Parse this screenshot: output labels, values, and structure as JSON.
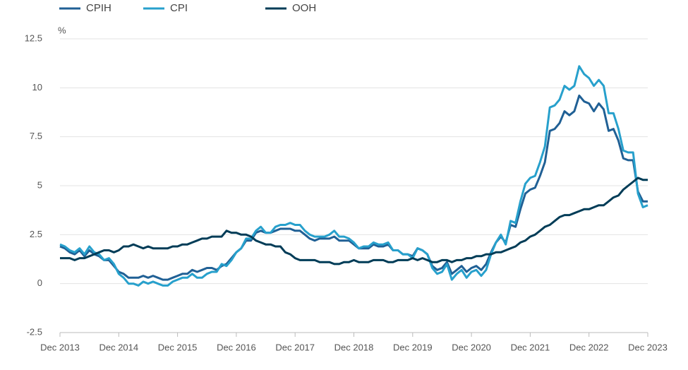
{
  "chart_data": {
    "type": "line",
    "y_label": "%",
    "categories": [
      "Dec 2013",
      null,
      null,
      null,
      null,
      null,
      null,
      null,
      null,
      null,
      null,
      null,
      "Dec 2014",
      null,
      null,
      null,
      null,
      null,
      null,
      null,
      null,
      null,
      null,
      null,
      "Dec 2015",
      null,
      null,
      null,
      null,
      null,
      null,
      null,
      null,
      null,
      null,
      null,
      "Dec 2016",
      null,
      null,
      null,
      null,
      null,
      null,
      null,
      null,
      null,
      null,
      null,
      "Dec 2017",
      null,
      null,
      null,
      null,
      null,
      null,
      null,
      null,
      null,
      null,
      null,
      "Dec 2018",
      null,
      null,
      null,
      null,
      null,
      null,
      null,
      null,
      null,
      null,
      null,
      "Dec 2019",
      null,
      null,
      null,
      null,
      null,
      null,
      null,
      null,
      null,
      null,
      null,
      "Dec 2020",
      null,
      null,
      null,
      null,
      null,
      null,
      null,
      null,
      null,
      null,
      null,
      "Dec 2021",
      null,
      null,
      null,
      null,
      null,
      null,
      null,
      null,
      null,
      null,
      null,
      "Dec 2022",
      null,
      null,
      null,
      null,
      null,
      null,
      null,
      null,
      null,
      null,
      null,
      "Dec 2023"
    ],
    "series": [
      {
        "name": "CPIH",
        "color": "#206095",
        "values": [
          1.9,
          1.8,
          1.6,
          1.5,
          1.7,
          1.4,
          1.7,
          1.5,
          1.4,
          1.2,
          1.2,
          0.9,
          0.6,
          0.5,
          0.3,
          0.3,
          0.3,
          0.4,
          0.3,
          0.4,
          0.3,
          0.2,
          0.2,
          0.3,
          0.4,
          0.5,
          0.5,
          0.7,
          0.6,
          0.7,
          0.8,
          0.8,
          0.7,
          0.9,
          1.0,
          1.3,
          1.6,
          1.8,
          2.2,
          2.2,
          2.6,
          2.7,
          2.6,
          2.6,
          2.7,
          2.8,
          2.8,
          2.8,
          2.7,
          2.7,
          2.5,
          2.3,
          2.2,
          2.3,
          2.3,
          2.3,
          2.4,
          2.2,
          2.2,
          2.2,
          2.0,
          1.8,
          1.8,
          1.8,
          2.0,
          1.9,
          1.9,
          2.0,
          1.7,
          1.7,
          1.5,
          1.5,
          1.4,
          1.8,
          1.7,
          1.5,
          0.9,
          0.7,
          0.8,
          1.1,
          0.5,
          0.7,
          0.9,
          0.6,
          0.8,
          0.9,
          0.7,
          1.0,
          1.6,
          2.1,
          2.4,
          2.1,
          3.0,
          2.9,
          3.8,
          4.6,
          4.8,
          4.9,
          5.5,
          6.2,
          7.8,
          7.9,
          8.2,
          8.8,
          8.6,
          8.8,
          9.6,
          9.3,
          9.2,
          8.8,
          9.2,
          8.9,
          7.8,
          7.9,
          7.3,
          6.4,
          6.3,
          6.3,
          4.7,
          4.2,
          4.2
        ]
      },
      {
        "name": "CPI",
        "color": "#27a0cc",
        "values": [
          2.0,
          1.9,
          1.7,
          1.6,
          1.8,
          1.5,
          1.9,
          1.6,
          1.5,
          1.2,
          1.3,
          1.0,
          0.5,
          0.3,
          0.0,
          0.0,
          -0.1,
          0.1,
          0.0,
          0.1,
          0.0,
          -0.1,
          -0.1,
          0.1,
          0.2,
          0.3,
          0.3,
          0.5,
          0.3,
          0.3,
          0.5,
          0.6,
          0.6,
          1.0,
          0.9,
          1.2,
          1.6,
          1.8,
          2.3,
          2.3,
          2.7,
          2.9,
          2.6,
          2.6,
          2.9,
          3.0,
          3.0,
          3.1,
          3.0,
          3.0,
          2.7,
          2.5,
          2.4,
          2.4,
          2.4,
          2.5,
          2.7,
          2.4,
          2.4,
          2.3,
          2.1,
          1.8,
          1.9,
          1.9,
          2.1,
          2.0,
          2.0,
          2.1,
          1.7,
          1.7,
          1.5,
          1.5,
          1.3,
          1.8,
          1.7,
          1.5,
          0.8,
          0.5,
          0.6,
          1.0,
          0.2,
          0.5,
          0.7,
          0.3,
          0.6,
          0.7,
          0.4,
          0.7,
          1.5,
          2.1,
          2.5,
          2.0,
          3.2,
          3.1,
          4.2,
          5.1,
          5.4,
          5.5,
          6.2,
          7.0,
          9.0,
          9.1,
          9.4,
          10.1,
          9.9,
          10.1,
          11.1,
          10.7,
          10.5,
          10.1,
          10.4,
          10.1,
          8.7,
          8.7,
          7.9,
          6.8,
          6.7,
          6.7,
          4.6,
          3.9,
          4.0
        ]
      },
      {
        "name": "OOH",
        "color": "#003c57",
        "values": [
          1.3,
          1.3,
          1.3,
          1.2,
          1.3,
          1.3,
          1.4,
          1.5,
          1.6,
          1.7,
          1.7,
          1.6,
          1.7,
          1.9,
          1.9,
          2.0,
          1.9,
          1.8,
          1.9,
          1.8,
          1.8,
          1.8,
          1.8,
          1.9,
          1.9,
          2.0,
          2.0,
          2.1,
          2.2,
          2.3,
          2.3,
          2.4,
          2.4,
          2.4,
          2.7,
          2.6,
          2.6,
          2.5,
          2.5,
          2.4,
          2.2,
          2.1,
          2.0,
          2.0,
          1.9,
          1.9,
          1.6,
          1.5,
          1.3,
          1.2,
          1.2,
          1.2,
          1.2,
          1.1,
          1.1,
          1.1,
          1.0,
          1.0,
          1.1,
          1.1,
          1.2,
          1.1,
          1.1,
          1.1,
          1.2,
          1.2,
          1.2,
          1.1,
          1.1,
          1.2,
          1.2,
          1.2,
          1.3,
          1.2,
          1.3,
          1.2,
          1.1,
          1.1,
          1.2,
          1.2,
          1.1,
          1.2,
          1.2,
          1.3,
          1.3,
          1.4,
          1.4,
          1.5,
          1.5,
          1.6,
          1.6,
          1.7,
          1.8,
          1.9,
          2.1,
          2.2,
          2.4,
          2.5,
          2.7,
          2.9,
          3.0,
          3.2,
          3.4,
          3.5,
          3.5,
          3.6,
          3.7,
          3.8,
          3.8,
          3.9,
          4.0,
          4.0,
          4.2,
          4.4,
          4.5,
          4.8,
          5.0,
          5.2,
          5.4,
          5.3,
          5.3
        ]
      }
    ],
    "ylim": [
      -2.5,
      12.5
    ],
    "yticks": [
      -2.5,
      0,
      2.5,
      5,
      7.5,
      10,
      12.5
    ],
    "grid": true
  }
}
